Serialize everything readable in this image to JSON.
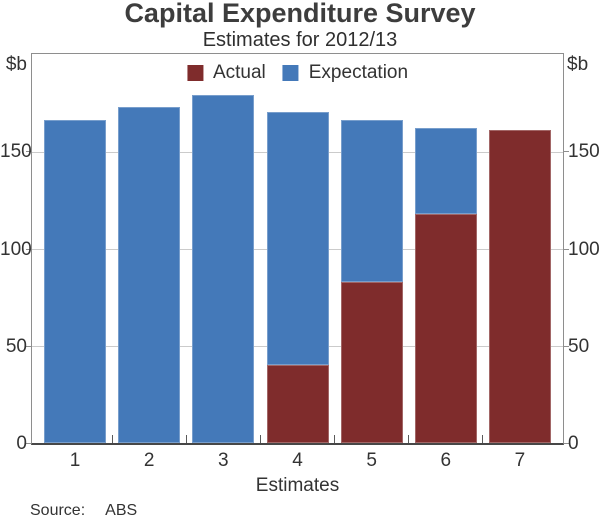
{
  "figure": {
    "title": "Capital Expenditure Survey",
    "subtitle": "Estimates for 2012/13",
    "unit_left": "$b",
    "unit_right": "$b",
    "xlabel": "Estimates",
    "source_label": "Source:",
    "source_value": "ABS"
  },
  "chart_data": {
    "type": "bar",
    "stacked": true,
    "title": "Capital Expenditure Survey",
    "subtitle": "Estimates for 2012/13",
    "unit": "$b",
    "xlabel": "Estimates",
    "categories": [
      "1",
      "2",
      "3",
      "4",
      "5",
      "6",
      "7"
    ],
    "series": [
      {
        "name": "Actual",
        "color": "#7f2c2c",
        "values": [
          null,
          null,
          null,
          40,
          83,
          118,
          161
        ]
      },
      {
        "name": "Expectation",
        "color": "#4479b9",
        "values": [
          166,
          173,
          179,
          170,
          166,
          162,
          null
        ]
      }
    ],
    "value_semantics": "Expectation values are total bar heights; Actual segments overlay from zero; bar 7 is entirely Actual",
    "ylim": [
      0,
      200
    ],
    "yticks": [
      0,
      50,
      100,
      150
    ],
    "grid": true,
    "legend_position": "top-center",
    "frame_color": "#8e8e8e",
    "gridline_color": "#cbcbcb",
    "source": "ABS"
  }
}
